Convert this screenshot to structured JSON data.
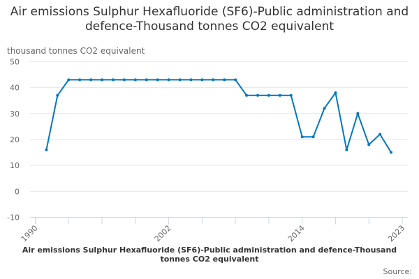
{
  "chart_data": {
    "type": "line",
    "title": "Air emissions Sulphur Hexafluoride (SF6)-Public administration and defence-Thousand tonnes CO2 equivalent",
    "ylabel": "thousand tonnes CO2 equivalent",
    "xlabel": "",
    "ylim": [
      -10,
      50
    ],
    "yticks": [
      -10,
      0,
      10,
      20,
      30,
      40,
      50
    ],
    "xlim": [
      1990,
      2023
    ],
    "xtick_labels": [
      "1990",
      "2002",
      "2014",
      "2023"
    ],
    "grid": true,
    "color": "#0077c0",
    "x": [
      1991,
      1992,
      1993,
      1994,
      1995,
      1996,
      1997,
      1998,
      1999,
      2000,
      2001,
      2002,
      2003,
      2004,
      2005,
      2006,
      2007,
      2008,
      2009,
      2010,
      2011,
      2012,
      2013,
      2014,
      2015,
      2016,
      2017,
      2018,
      2019,
      2020,
      2021,
      2022
    ],
    "values": [
      16,
      37,
      43,
      43,
      43,
      43,
      43,
      43,
      43,
      43,
      43,
      43,
      43,
      43,
      43,
      43,
      43,
      43,
      37,
      37,
      37,
      37,
      37,
      21,
      21,
      32,
      38,
      16,
      30,
      18,
      22,
      15
    ]
  },
  "caption": "Air emissions Sulphur Hexafluoride (SF6)-Public administration and defence-Thousand tonnes CO2 equivalent",
  "source": "Source:"
}
